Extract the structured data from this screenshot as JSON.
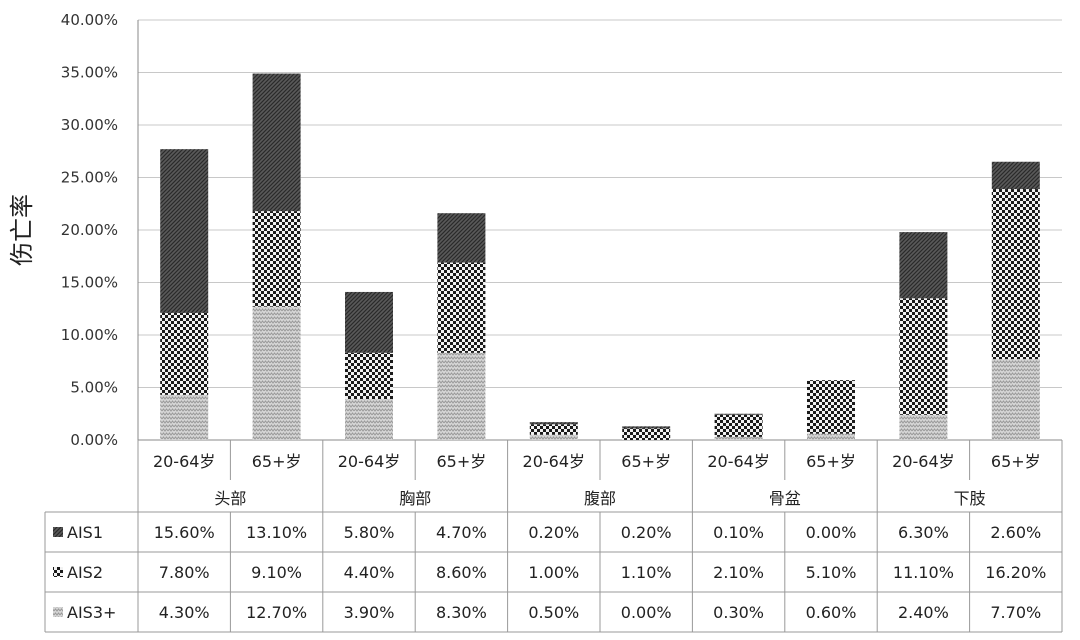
{
  "chart_data": {
    "type": "bar",
    "stacked": true,
    "ylabel": "伤亡率",
    "ylim": [
      0,
      0.4
    ],
    "y_ticks": [
      "0.00%",
      "5.00%",
      "10.00%",
      "15.00%",
      "20.00%",
      "25.00%",
      "30.00%",
      "35.00%",
      "40.00%"
    ],
    "groups": [
      "头部",
      "胸部",
      "腹部",
      "骨盆",
      "下肢"
    ],
    "subcategories": [
      "20-64岁",
      "65+岁"
    ],
    "categories": [
      "头部 20-64岁",
      "头部 65+岁",
      "胸部 20-64岁",
      "胸部 65+岁",
      "腹部 20-64岁",
      "腹部 65+岁",
      "骨盆 20-64岁",
      "骨盆 65+岁",
      "下肢 20-64岁",
      "下肢 65+岁"
    ],
    "series": [
      {
        "name": "AIS1",
        "values": [
          0.156,
          0.131,
          0.058,
          0.047,
          0.002,
          0.002,
          0.001,
          0.0,
          0.063,
          0.026
        ],
        "labels": [
          "15.60%",
          "13.10%",
          "5.80%",
          "4.70%",
          "0.20%",
          "0.20%",
          "0.10%",
          "0.00%",
          "6.30%",
          "2.60%"
        ]
      },
      {
        "name": "AIS2",
        "values": [
          0.078,
          0.091,
          0.044,
          0.086,
          0.01,
          0.011,
          0.021,
          0.051,
          0.111,
          0.162
        ],
        "labels": [
          "7.80%",
          "9.10%",
          "4.40%",
          "8.60%",
          "1.00%",
          "1.10%",
          "2.10%",
          "5.10%",
          "11.10%",
          "16.20%"
        ]
      },
      {
        "name": "AIS3+",
        "values": [
          0.043,
          0.127,
          0.039,
          0.083,
          0.005,
          0.0,
          0.003,
          0.006,
          0.024,
          0.077
        ],
        "labels": [
          "4.30%",
          "12.70%",
          "3.90%",
          "8.30%",
          "0.50%",
          "0.00%",
          "0.30%",
          "0.60%",
          "2.40%",
          "7.70%"
        ]
      }
    ],
    "legend": "data-table",
    "grid": true
  }
}
